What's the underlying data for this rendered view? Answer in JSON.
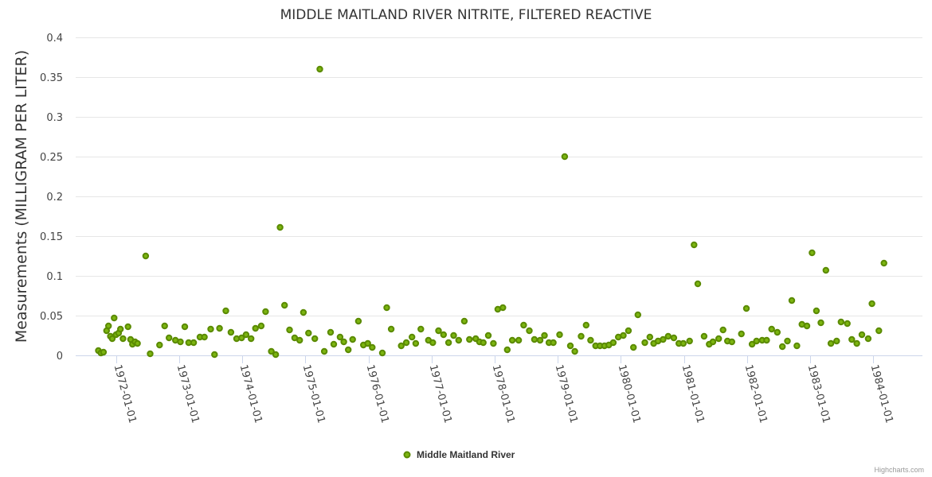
{
  "chart_data": {
    "type": "scatter",
    "title": "MIDDLE MAITLAND RIVER NITRITE, FILTERED REACTIVE",
    "xlabel": "",
    "ylabel": "Measurements (MILLIGRAM PER LITER)",
    "xlim": [
      1971.36,
      1984.78
    ],
    "ylim": [
      0,
      0.4
    ],
    "yticks": [
      0,
      0.05,
      0.1,
      0.15,
      0.2,
      0.25,
      0.3,
      0.35,
      0.4
    ],
    "ytick_labels": [
      "0",
      "0.05",
      "0.1",
      "0.15",
      "0.2",
      "0.25",
      "0.3",
      "0.35",
      "0.4"
    ],
    "xticks": [
      1972,
      1973,
      1974,
      1975,
      1976,
      1977,
      1978,
      1979,
      1980,
      1981,
      1982,
      1983,
      1984
    ],
    "xtick_labels": [
      "1972-01-01",
      "1973-01-01",
      "1974-01-01",
      "1975-01-01",
      "1976-01-01",
      "1977-01-01",
      "1978-01-01",
      "1979-01-01",
      "1980-01-01",
      "1981-01-01",
      "1982-01-01",
      "1983-01-01",
      "1984-01-01"
    ],
    "grid": true,
    "legend_position": "bottom-center",
    "series": [
      {
        "name": "Middle Maitland River",
        "color": "#7cb510",
        "stroke": "#5a8a00",
        "points": [
          [
            1971.72,
            0.006
          ],
          [
            1971.76,
            0.003
          ],
          [
            1971.8,
            0.004
          ],
          [
            1971.85,
            0.031
          ],
          [
            1971.88,
            0.037
          ],
          [
            1971.91,
            0.024
          ],
          [
            1971.94,
            0.021
          ],
          [
            1971.97,
            0.047
          ],
          [
            1972.0,
            0.026
          ],
          [
            1972.04,
            0.028
          ],
          [
            1972.07,
            0.033
          ],
          [
            1972.11,
            0.021
          ],
          [
            1972.19,
            0.036
          ],
          [
            1972.23,
            0.02
          ],
          [
            1972.26,
            0.014
          ],
          [
            1972.3,
            0.017
          ],
          [
            1972.34,
            0.015
          ],
          [
            1972.47,
            0.125
          ],
          [
            1972.54,
            0.002
          ],
          [
            1972.69,
            0.013
          ],
          [
            1972.77,
            0.037
          ],
          [
            1972.84,
            0.022
          ],
          [
            1972.94,
            0.019
          ],
          [
            1973.02,
            0.017
          ],
          [
            1973.09,
            0.036
          ],
          [
            1973.15,
            0.016
          ],
          [
            1973.23,
            0.016
          ],
          [
            1973.33,
            0.023
          ],
          [
            1973.4,
            0.023
          ],
          [
            1973.5,
            0.033
          ],
          [
            1973.56,
            0.001
          ],
          [
            1973.64,
            0.034
          ],
          [
            1973.74,
            0.056
          ],
          [
            1973.82,
            0.029
          ],
          [
            1973.91,
            0.021
          ],
          [
            1973.99,
            0.022
          ],
          [
            1974.06,
            0.026
          ],
          [
            1974.14,
            0.021
          ],
          [
            1974.21,
            0.034
          ],
          [
            1974.3,
            0.037
          ],
          [
            1974.37,
            0.055
          ],
          [
            1974.46,
            0.005
          ],
          [
            1974.53,
            0.001
          ],
          [
            1974.6,
            0.161
          ],
          [
            1974.67,
            0.063
          ],
          [
            1974.75,
            0.032
          ],
          [
            1974.83,
            0.022
          ],
          [
            1974.91,
            0.019
          ],
          [
            1974.97,
            0.054
          ],
          [
            1975.05,
            0.028
          ],
          [
            1975.15,
            0.021
          ],
          [
            1975.23,
            0.36
          ],
          [
            1975.3,
            0.005
          ],
          [
            1975.4,
            0.029
          ],
          [
            1975.45,
            0.014
          ],
          [
            1975.55,
            0.023
          ],
          [
            1975.61,
            0.017
          ],
          [
            1975.68,
            0.007
          ],
          [
            1975.75,
            0.02
          ],
          [
            1975.84,
            0.043
          ],
          [
            1975.92,
            0.013
          ],
          [
            1975.99,
            0.015
          ],
          [
            1976.06,
            0.01
          ],
          [
            1976.22,
            0.003
          ],
          [
            1976.29,
            0.06
          ],
          [
            1976.36,
            0.033
          ],
          [
            1976.52,
            0.012
          ],
          [
            1976.6,
            0.016
          ],
          [
            1976.69,
            0.023
          ],
          [
            1976.75,
            0.015
          ],
          [
            1976.83,
            0.033
          ],
          [
            1976.95,
            0.019
          ],
          [
            1977.02,
            0.016
          ],
          [
            1977.11,
            0.031
          ],
          [
            1977.19,
            0.026
          ],
          [
            1977.27,
            0.016
          ],
          [
            1977.35,
            0.025
          ],
          [
            1977.43,
            0.019
          ],
          [
            1977.52,
            0.043
          ],
          [
            1977.6,
            0.02
          ],
          [
            1977.7,
            0.021
          ],
          [
            1977.76,
            0.017
          ],
          [
            1977.82,
            0.016
          ],
          [
            1977.9,
            0.025
          ],
          [
            1977.98,
            0.015
          ],
          [
            1978.05,
            0.058
          ],
          [
            1978.13,
            0.06
          ],
          [
            1978.2,
            0.007
          ],
          [
            1978.28,
            0.019
          ],
          [
            1978.38,
            0.019
          ],
          [
            1978.46,
            0.038
          ],
          [
            1978.55,
            0.031
          ],
          [
            1978.63,
            0.02
          ],
          [
            1978.72,
            0.019
          ],
          [
            1978.79,
            0.025
          ],
          [
            1978.86,
            0.016
          ],
          [
            1978.93,
            0.016
          ],
          [
            1979.03,
            0.026
          ],
          [
            1979.11,
            0.25
          ],
          [
            1979.2,
            0.012
          ],
          [
            1979.27,
            0.005
          ],
          [
            1979.37,
            0.024
          ],
          [
            1979.45,
            0.038
          ],
          [
            1979.52,
            0.019
          ],
          [
            1979.6,
            0.012
          ],
          [
            1979.67,
            0.012
          ],
          [
            1979.74,
            0.012
          ],
          [
            1979.81,
            0.013
          ],
          [
            1979.88,
            0.016
          ],
          [
            1979.96,
            0.023
          ],
          [
            1980.04,
            0.025
          ],
          [
            1980.12,
            0.031
          ],
          [
            1980.2,
            0.01
          ],
          [
            1980.27,
            0.051
          ],
          [
            1980.38,
            0.016
          ],
          [
            1980.46,
            0.023
          ],
          [
            1980.52,
            0.015
          ],
          [
            1980.59,
            0.018
          ],
          [
            1980.67,
            0.02
          ],
          [
            1980.75,
            0.024
          ],
          [
            1980.84,
            0.022
          ],
          [
            1980.92,
            0.015
          ],
          [
            1980.99,
            0.015
          ],
          [
            1981.09,
            0.018
          ],
          [
            1981.16,
            0.139
          ],
          [
            1981.22,
            0.09
          ],
          [
            1981.32,
            0.024
          ],
          [
            1981.4,
            0.014
          ],
          [
            1981.46,
            0.017
          ],
          [
            1981.55,
            0.021
          ],
          [
            1981.62,
            0.032
          ],
          [
            1981.69,
            0.018
          ],
          [
            1981.76,
            0.017
          ],
          [
            1981.91,
            0.027
          ],
          [
            1981.99,
            0.059
          ],
          [
            1982.08,
            0.014
          ],
          [
            1982.15,
            0.018
          ],
          [
            1982.24,
            0.019
          ],
          [
            1982.31,
            0.019
          ],
          [
            1982.39,
            0.033
          ],
          [
            1982.48,
            0.029
          ],
          [
            1982.56,
            0.011
          ],
          [
            1982.64,
            0.018
          ],
          [
            1982.71,
            0.069
          ],
          [
            1982.79,
            0.012
          ],
          [
            1982.87,
            0.039
          ],
          [
            1982.95,
            0.037
          ],
          [
            1983.03,
            0.129
          ],
          [
            1983.1,
            0.056
          ],
          [
            1983.17,
            0.041
          ],
          [
            1983.25,
            0.107
          ],
          [
            1983.33,
            0.015
          ],
          [
            1983.42,
            0.018
          ],
          [
            1983.49,
            0.042
          ],
          [
            1983.59,
            0.04
          ],
          [
            1983.66,
            0.02
          ],
          [
            1983.74,
            0.015
          ],
          [
            1983.82,
            0.026
          ],
          [
            1983.92,
            0.021
          ],
          [
            1983.98,
            0.065
          ],
          [
            1984.09,
            0.031
          ],
          [
            1984.17,
            0.116
          ]
        ]
      }
    ]
  },
  "credits": "Highcharts.com"
}
